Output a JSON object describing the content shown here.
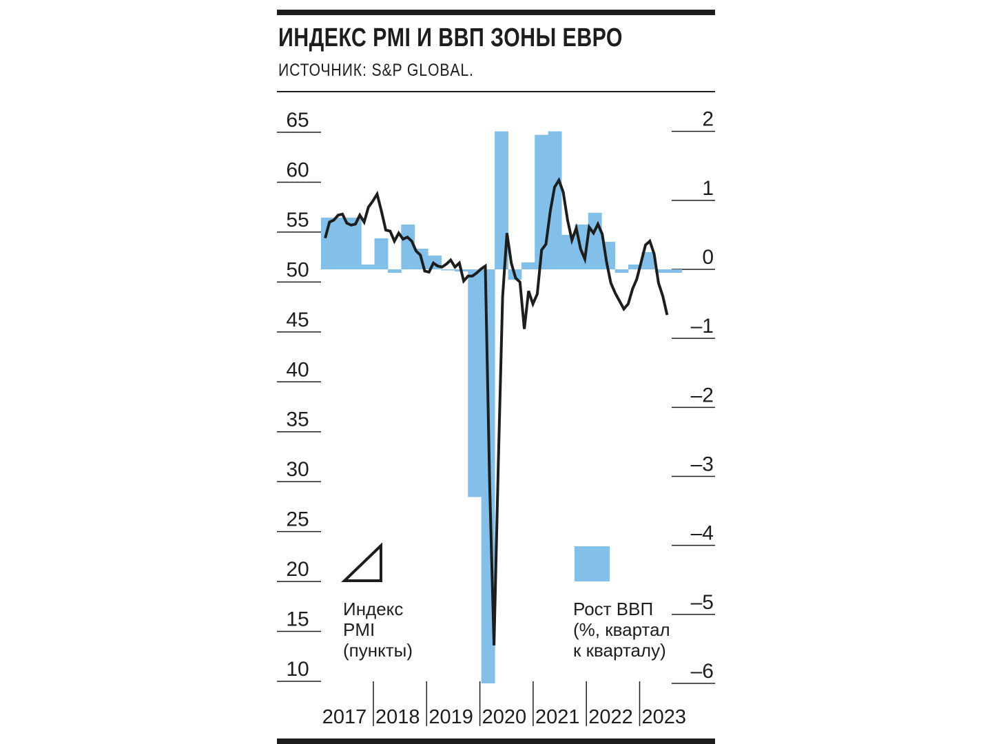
{
  "title": "ИНДЕКС PMI И ВВП ЗОНЫ ЕВРО",
  "subtitle": "ИСТОЧНИК: S&P GLOBAL.",
  "colors": {
    "ink": "#1d1d1b",
    "gdp_bar": "#82c0ea"
  },
  "legend": {
    "pmi": [
      "Индекс",
      "PMI",
      "(пункты)"
    ],
    "gdp": [
      "Рост ВВП",
      "(%, квартал",
      "к кварталу)"
    ]
  },
  "chart_data": {
    "type": "bar+line",
    "years": [
      "2017",
      "2018",
      "2019",
      "2020",
      "2021",
      "2022",
      "2023"
    ],
    "y_left": {
      "label": "Индекс PMI (пункты)",
      "ticks": [
        "65",
        "60",
        "55",
        "50",
        "45",
        "40",
        "35",
        "30",
        "25",
        "20",
        "15",
        "10"
      ],
      "range": [
        10,
        65
      ]
    },
    "y_right": {
      "label": "Рост ВВП (%, квартал к кварталу)",
      "ticks": [
        "2",
        "1",
        "0",
        "–1",
        "–2",
        "–3",
        "–4",
        "–5",
        "–6"
      ],
      "range": [
        -6,
        2
      ]
    },
    "gdp_quarterly": {
      "name": "Рост ВВП",
      "quarters": [
        "2017Q1",
        "2017Q2",
        "2017Q3",
        "2017Q4",
        "2018Q1",
        "2018Q2",
        "2018Q3",
        "2018Q4",
        "2019Q1",
        "2019Q2",
        "2019Q3",
        "2019Q4",
        "2020Q1",
        "2020Q2",
        "2020Q3",
        "2020Q4",
        "2021Q1",
        "2021Q2",
        "2021Q3",
        "2021Q4",
        "2022Q1",
        "2022Q2",
        "2022Q3",
        "2022Q4",
        "2023Q1",
        "2023Q2",
        "2023Q3"
      ],
      "values": [
        0.75,
        0.75,
        0.75,
        0.07,
        0.45,
        -0.05,
        0.65,
        0.3,
        0.2,
        0.0,
        -0.03,
        -3.3,
        -6.0,
        2.0,
        -0.15,
        0.1,
        1.95,
        2.0,
        0.5,
        0.65,
        0.82,
        0.4,
        -0.05,
        0.07,
        0.25,
        -0.05,
        -0.05
      ]
    },
    "pmi_monthly": {
      "name": "Индекс PMI",
      "start": "2017-01",
      "values": [
        54.4,
        56.0,
        56.2,
        56.7,
        56.8,
        55.9,
        55.7,
        55.8,
        56.7,
        56.0,
        57.5,
        58.1,
        58.8,
        57.1,
        55.2,
        55.1,
        54.1,
        54.9,
        54.3,
        54.5,
        54.1,
        53.1,
        52.7,
        51.1,
        51.0,
        51.9,
        51.6,
        51.5,
        51.8,
        52.2,
        51.5,
        51.9,
        50.1,
        50.6,
        50.6,
        50.9,
        51.3,
        51.6,
        29.7,
        13.6,
        31.9,
        48.5,
        54.9,
        51.9,
        50.4,
        50.0,
        45.3,
        49.1,
        47.8,
        48.8,
        53.2,
        53.8,
        57.1,
        59.5,
        60.2,
        59.0,
        56.2,
        54.2,
        55.4,
        53.3,
        52.3,
        55.5,
        54.9,
        55.8,
        54.8,
        52.0,
        49.9,
        48.9,
        48.1,
        47.3,
        47.8,
        49.3,
        50.3,
        52.0,
        53.7,
        54.1,
        52.8,
        49.9,
        48.6,
        46.7
      ]
    }
  }
}
